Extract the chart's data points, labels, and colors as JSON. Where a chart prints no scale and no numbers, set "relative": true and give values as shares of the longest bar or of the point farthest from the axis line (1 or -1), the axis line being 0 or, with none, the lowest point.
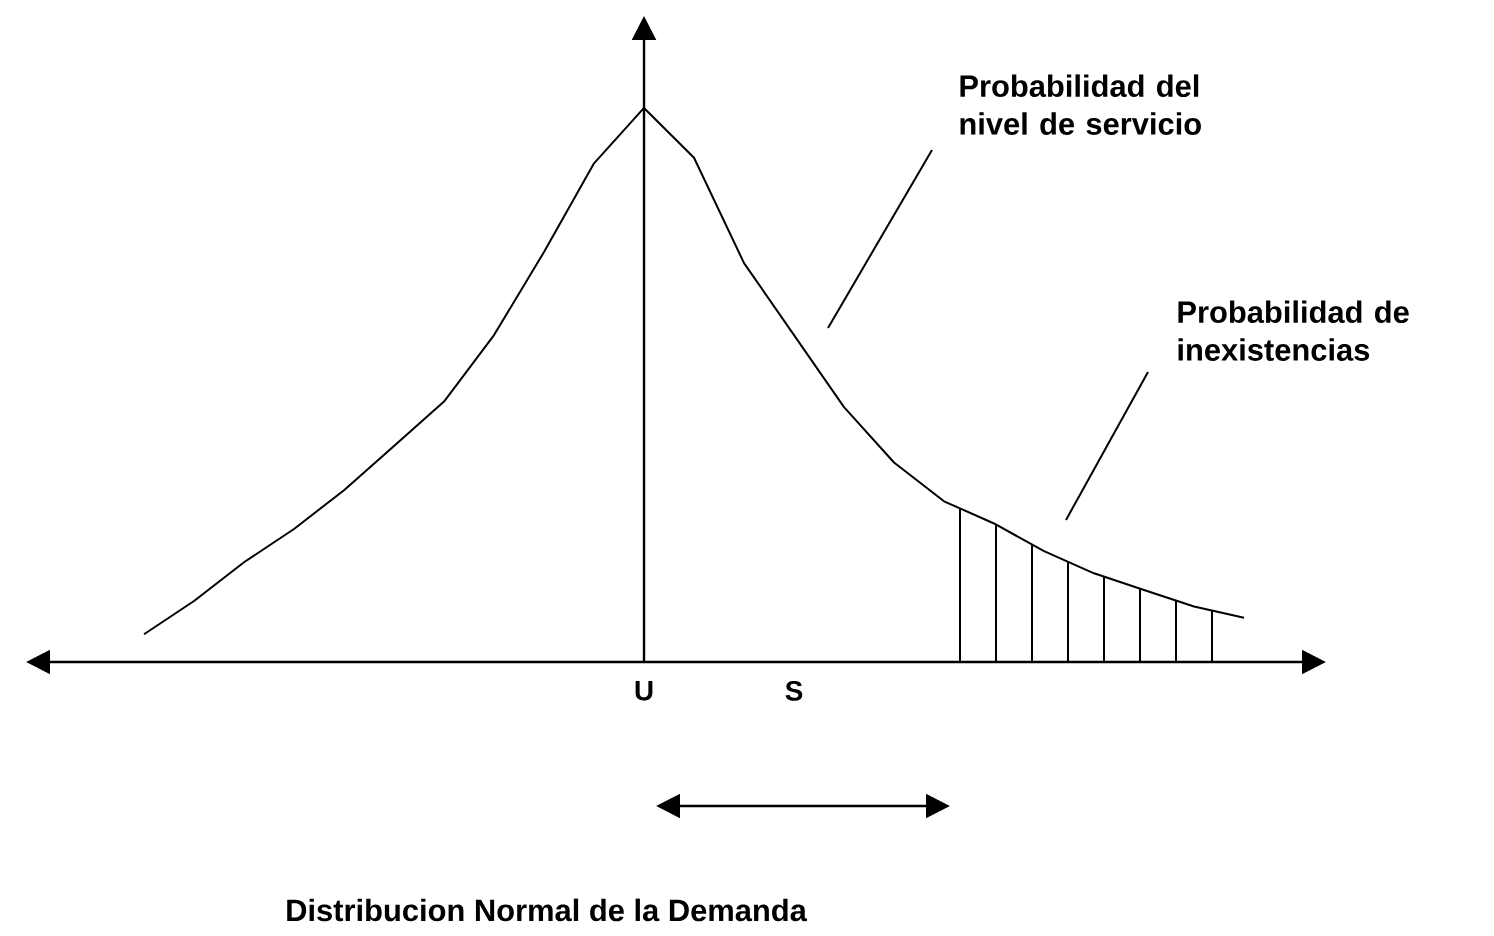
{
  "chart_data": {
    "type": "line",
    "title": "Distribucion Normal de la Demanda",
    "relative": true,
    "color": "#000000",
    "categories": [
      null,
      null,
      null,
      null,
      null,
      null,
      null,
      null,
      null,
      null,
      "U",
      null,
      null,
      "S",
      null,
      null,
      null,
      null,
      null,
      null,
      null,
      null,
      null
    ],
    "values": [
      0.05,
      0.11,
      0.18,
      0.24,
      0.31,
      0.39,
      0.47,
      0.59,
      0.74,
      0.9,
      1,
      0.91,
      0.72,
      0.59,
      0.46,
      0.36,
      0.29,
      0.25,
      0.2,
      0.16,
      0.13,
      0.1,
      0.08
    ],
    "annotations": [
      "Probabilidad del nivel de servicio",
      "Probabilidad de inexistencias"
    ]
  }
}
